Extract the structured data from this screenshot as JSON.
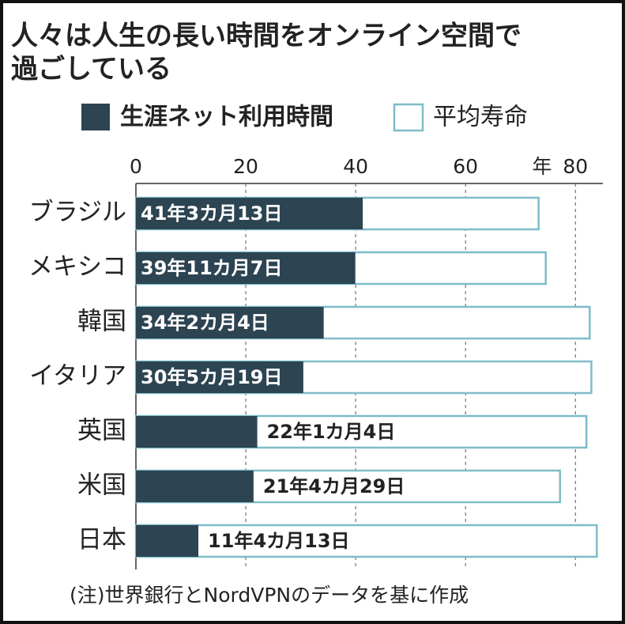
{
  "chart_data": {
    "type": "bar",
    "orientation": "horizontal",
    "overlap": true,
    "title": [
      "人々は人生の長い時間をオンライン空間で",
      "過ごしている"
    ],
    "categories": [
      "ブラジル",
      "メキシコ",
      "韓国",
      "イタリア",
      "英国",
      "米国",
      "日本"
    ],
    "series": [
      {
        "name": "生涯ネット利用時間",
        "color": "#2d4452",
        "values": [
          41.29,
          39.94,
          34.18,
          30.47,
          22.09,
          21.41,
          11.37
        ],
        "value_labels": [
          "41年3カ月13日",
          "39年11カ月7日",
          "34年2カ月4日",
          "30年5カ月19日",
          "22年1カ月4日",
          "21年4カ月29日",
          "11年4カ月13日"
        ]
      },
      {
        "name": "平均寿命",
        "color": "#7dbdc8",
        "values": [
          73.3,
          74.6,
          82.6,
          82.9,
          82.0,
          77.2,
          83.9
        ]
      }
    ],
    "xlim": [
      0,
      85
    ],
    "xticks": [
      0,
      20,
      40,
      60,
      80
    ],
    "x_unit": "年",
    "grid": true,
    "note": "(注)世界銀行とNordVPNのデータを基に作成"
  }
}
